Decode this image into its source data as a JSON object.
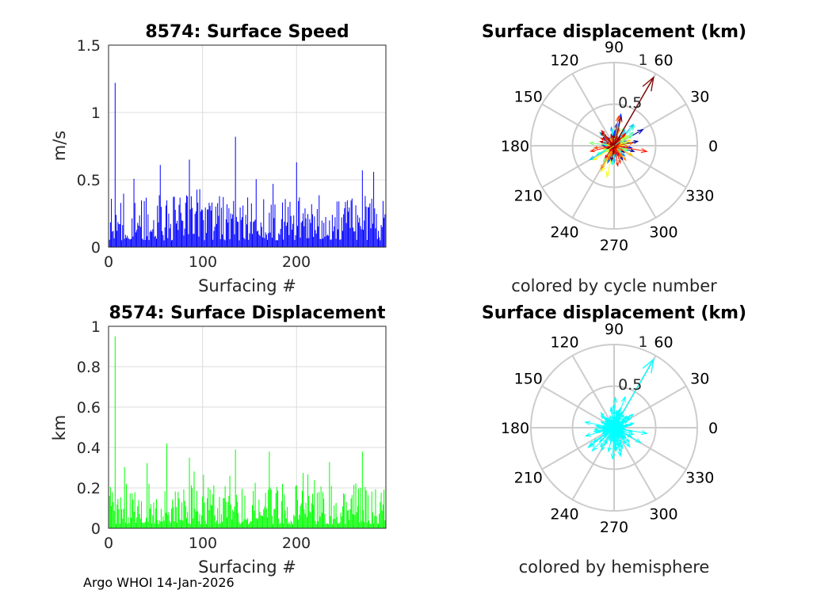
{
  "footer": "Argo WHOI 14-Jan-2026",
  "panels": {
    "speed": {
      "title": "8574: Surface Speed",
      "xlabel": "Surfacing #",
      "ylabel": "m/s",
      "xticks": [
        "0",
        "100",
        "200"
      ],
      "yticks": [
        "0",
        "0.5",
        "1",
        "1.5"
      ],
      "color": "#0000ff"
    },
    "disp": {
      "title": "8574: Surface Displacement",
      "xlabel": "Surfacing #",
      "ylabel": "km",
      "xticks": [
        "0",
        "100",
        "200"
      ],
      "yticks": [
        "0",
        "0.2",
        "0.4",
        "0.6",
        "0.8",
        "1"
      ],
      "color": "#00ff00"
    },
    "polar1": {
      "title": "Surface displacement (km)",
      "subtitle": "colored by cycle number",
      "angle_labels": [
        "0",
        "30",
        "60",
        "90",
        "120",
        "150",
        "180",
        "210",
        "240",
        "270",
        "300",
        "330"
      ],
      "radius_labels": [
        "0.5",
        "1"
      ]
    },
    "polar2": {
      "title": "Surface displacement (km)",
      "subtitle": "colored by hemisphere",
      "angle_labels": [
        "0",
        "30",
        "60",
        "90",
        "120",
        "150",
        "180",
        "210",
        "240",
        "270",
        "300",
        "330"
      ],
      "radius_labels": [
        "0.5",
        "1"
      ],
      "color": "#00ffff"
    }
  },
  "chart_data": [
    {
      "type": "bar",
      "title": "8574: Surface Speed",
      "xlabel": "Surfacing #",
      "ylabel": "m/s",
      "xlim": [
        0,
        295
      ],
      "ylim": [
        0,
        1.5
      ],
      "grid": true,
      "n": 295,
      "peaks": [
        [
          7,
          1.22
        ],
        [
          55,
          0.61
        ],
        [
          86,
          0.65
        ],
        [
          135,
          0.82
        ],
        [
          200,
          0.63
        ],
        [
          270,
          0.57
        ]
      ],
      "typical_range": [
        0.05,
        0.5
      ]
    },
    {
      "type": "bar",
      "title": "8574: Surface Displacement",
      "xlabel": "Surfacing #",
      "ylabel": "km",
      "xlim": [
        0,
        295
      ],
      "ylim": [
        0,
        1
      ],
      "grid": true,
      "n": 295,
      "peaks": [
        [
          7,
          0.95
        ],
        [
          62,
          0.42
        ],
        [
          86,
          0.35
        ],
        [
          135,
          0.39
        ],
        [
          171,
          0.38
        ],
        [
          270,
          0.38
        ]
      ],
      "typical_range": [
        0.02,
        0.3
      ]
    },
    {
      "type": "polar-arrows",
      "title": "Surface displacement (km)",
      "subtitle": "colored by cycle number",
      "rlim": [
        0,
        1
      ],
      "rticks": [
        0.5,
        1
      ],
      "longest_vector": {
        "angle_deg": 60,
        "r": 0.95
      },
      "colormap": "jet"
    },
    {
      "type": "polar-arrows",
      "title": "Surface displacement (km)",
      "subtitle": "colored by hemisphere",
      "rlim": [
        0,
        1
      ],
      "rticks": [
        0.5,
        1
      ],
      "longest_vector": {
        "angle_deg": 60,
        "r": 0.95
      },
      "color": "#00ffff"
    }
  ]
}
